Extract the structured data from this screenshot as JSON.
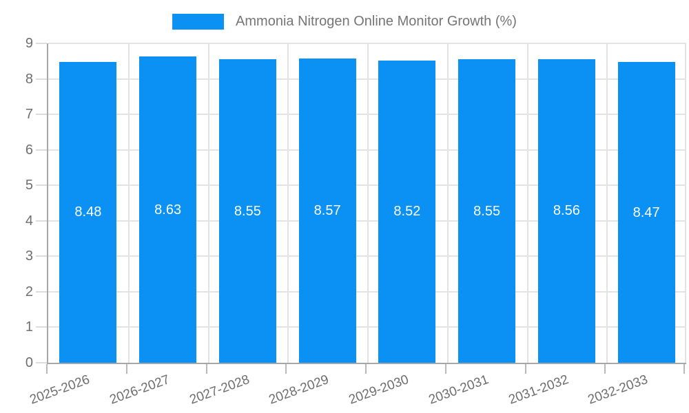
{
  "legend": {
    "label": "Ammonia Nitrogen Online Monitor Growth (%)"
  },
  "colors": {
    "bar": "#0a91f3",
    "grid": "#e3e3e3",
    "axis": "#a6a6a6",
    "tick_label": "#6e6e6e",
    "legend_text": "#757575",
    "value_label": "#ffffff"
  },
  "chart_data": {
    "type": "bar",
    "title": "Ammonia Nitrogen Online Monitor Growth (%)",
    "categories": [
      "2025-2026",
      "2026-2027",
      "2027-2028",
      "2028-2029",
      "2029-2030",
      "2030-2031",
      "2031-2032",
      "2032-2033"
    ],
    "values": [
      8.48,
      8.63,
      8.55,
      8.57,
      8.52,
      8.55,
      8.56,
      8.47
    ],
    "value_labels": [
      "8.48",
      "8.63",
      "8.55",
      "8.57",
      "8.52",
      "8.55",
      "8.56",
      "8.47"
    ],
    "xlabel": "",
    "ylabel": "",
    "ylim": [
      0,
      9
    ],
    "yticks": [
      0,
      1,
      2,
      3,
      4,
      5,
      6,
      7,
      8,
      9
    ],
    "ytick_labels": [
      "0",
      "1",
      "2",
      "3",
      "4",
      "5",
      "6",
      "7",
      "8",
      "9"
    ],
    "grid": true,
    "legend_position": "top",
    "bar_color": "#0a91f3"
  }
}
